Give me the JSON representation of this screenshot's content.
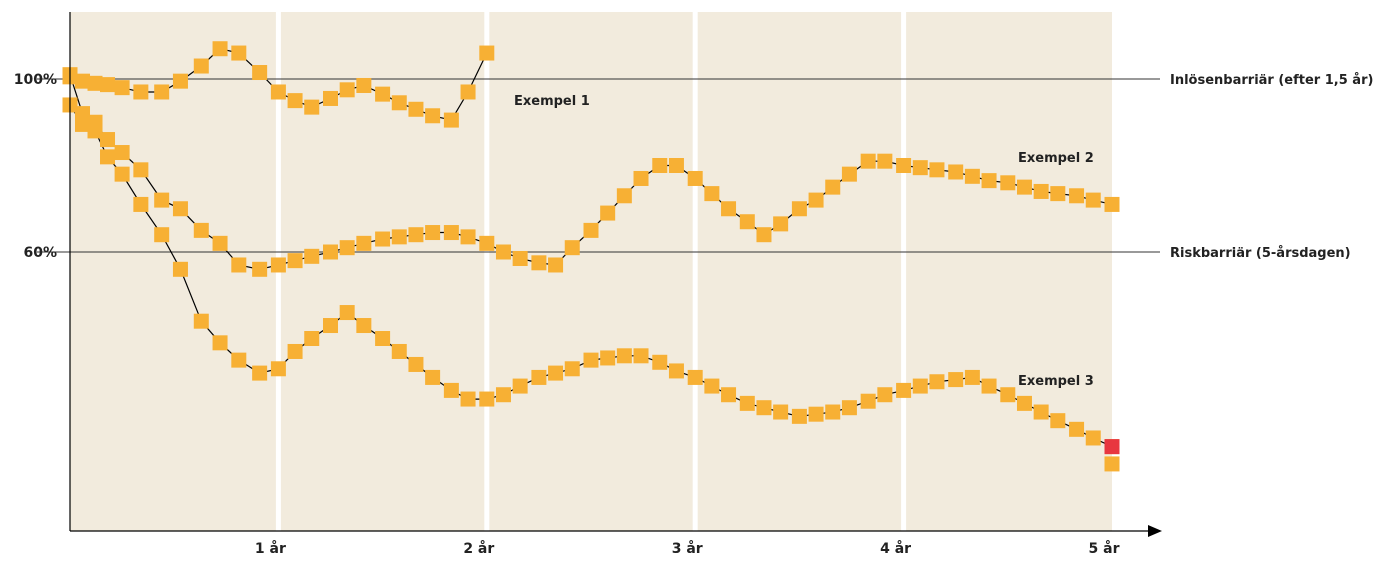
{
  "chart_data": {
    "type": "line",
    "xlim": [
      0,
      5
    ],
    "ylim": [
      0,
      116
    ],
    "x_ticks": [
      {
        "value": 1,
        "label": "1 år"
      },
      {
        "value": 2,
        "label": "2 år"
      },
      {
        "value": 3,
        "label": "3 år"
      },
      {
        "value": 4,
        "label": "4 år"
      },
      {
        "value": 5,
        "label": "5 år"
      }
    ],
    "y_ticks": [
      {
        "value": 100,
        "label": "100%"
      },
      {
        "value": 60,
        "label": "60%"
      }
    ],
    "reference_lines": [
      {
        "value": 100,
        "label": "Inlösenbarriär (efter 1,5 år)"
      },
      {
        "value": 60,
        "label": "Riskbarriär (5-årsdagen)"
      }
    ],
    "series": [
      {
        "name": "Exempel 1",
        "x": [
          0,
          0.06,
          0.12,
          0.18,
          0.25,
          0.34,
          0.44,
          0.53,
          0.63,
          0.72,
          0.81,
          0.91,
          1.0,
          1.08,
          1.16,
          1.25,
          1.33,
          1.41,
          1.5,
          1.58,
          1.66,
          1.74,
          1.83,
          1.91,
          2.0
        ],
        "y": [
          100.5,
          99.5,
          99,
          98.7,
          98,
          97,
          97,
          99.5,
          103,
          107,
          106,
          101.5,
          97,
          95,
          93.5,
          95.5,
          97.5,
          98.5,
          96.5,
          94.5,
          93,
          91.5,
          90.5,
          97,
          106
        ]
      },
      {
        "name": "Exempel 2",
        "x": [
          0,
          0.06,
          0.12,
          0.18,
          0.25,
          0.34,
          0.44,
          0.53,
          0.63,
          0.72,
          0.81,
          0.91,
          1.0,
          1.08,
          1.16,
          1.25,
          1.33,
          1.41,
          1.5,
          1.58,
          1.66,
          1.74,
          1.83,
          1.91,
          2.0,
          2.08,
          2.16,
          2.25,
          2.33,
          2.41,
          2.5,
          2.58,
          2.66,
          2.74,
          2.83,
          2.91,
          3.0,
          3.08,
          3.16,
          3.25,
          3.33,
          3.41,
          3.5,
          3.58,
          3.66,
          3.74,
          3.83,
          3.91,
          4.0,
          4.08,
          4.16,
          4.25,
          4.33,
          4.41,
          4.5,
          4.58,
          4.66,
          4.74,
          4.83,
          4.91,
          5.0
        ],
        "y": [
          101,
          92,
          90,
          86,
          83,
          79,
          72,
          70,
          65,
          62,
          57,
          56,
          57,
          58,
          59,
          60,
          61,
          62,
          63,
          63.5,
          64,
          64.5,
          64.5,
          63.5,
          62,
          60,
          58.5,
          57.5,
          57,
          61,
          65,
          69,
          73,
          77,
          80,
          80,
          77,
          73.5,
          70,
          67,
          64,
          66.5,
          70,
          72,
          75,
          78,
          81,
          81,
          80,
          79.5,
          79,
          78.5,
          77.5,
          76.5,
          76,
          75,
          74,
          73.5,
          73,
          72,
          71
        ]
      },
      {
        "name": "Exempel 3",
        "x": [
          0,
          0.06,
          0.12,
          0.18,
          0.25,
          0.34,
          0.44,
          0.53,
          0.63,
          0.72,
          0.81,
          0.91,
          1.0,
          1.08,
          1.16,
          1.25,
          1.33,
          1.41,
          1.5,
          1.58,
          1.66,
          1.74,
          1.83,
          1.91,
          2.0,
          2.08,
          2.16,
          2.25,
          2.33,
          2.41,
          2.5,
          2.58,
          2.66,
          2.74,
          2.83,
          2.91,
          3.0,
          3.08,
          3.16,
          3.25,
          3.33,
          3.41,
          3.5,
          3.58,
          3.66,
          3.74,
          3.83,
          3.91,
          4.0,
          4.08,
          4.16,
          4.25,
          4.33,
          4.41,
          4.5,
          4.58,
          4.66,
          4.74,
          4.83,
          4.91,
          5.0
        ],
        "y": [
          94,
          89.5,
          88,
          82,
          78,
          71,
          64,
          56,
          44,
          39,
          35,
          32,
          33,
          37,
          40,
          43,
          46,
          43,
          40,
          37,
          34,
          31,
          28,
          26,
          26,
          27,
          29,
          31,
          32,
          33,
          35,
          35.5,
          36,
          36,
          34.5,
          32.5,
          31,
          29,
          27,
          25,
          24,
          23,
          22,
          22.5,
          23,
          24,
          25.5,
          27,
          28,
          29,
          30,
          30.5,
          31,
          29,
          27,
          25,
          23,
          21,
          19,
          17,
          15
        ]
      }
    ],
    "end_markers": [
      {
        "x": 5.0,
        "y": 15.0,
        "color": "#E8363F"
      },
      {
        "x": 5.0,
        "y": 11.0,
        "color": "#F7B034"
      }
    ],
    "colors": {
      "background_band": "#F2EBDD",
      "marker": "#F7B034",
      "marker_end": "#E8363F",
      "line": "#000000"
    }
  }
}
